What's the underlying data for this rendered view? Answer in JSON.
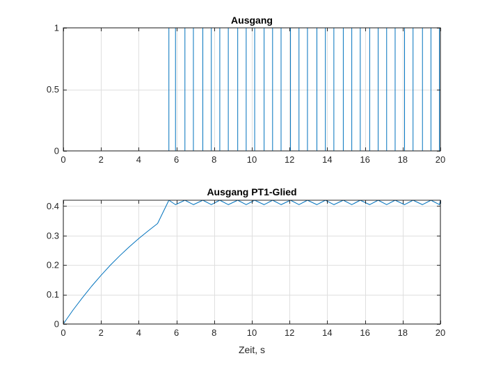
{
  "chart_data": [
    {
      "type": "line",
      "title": "Ausgang",
      "xlabel": "",
      "ylabel": "",
      "xlim": [
        0,
        20
      ],
      "ylim": [
        0,
        1
      ],
      "xticks": [
        0,
        2,
        4,
        6,
        8,
        10,
        12,
        14,
        16,
        18,
        20
      ],
      "xtick_labels": [
        "0",
        "2",
        "4",
        "6",
        "8",
        "10",
        "12",
        "14",
        "16",
        "18",
        "20"
      ],
      "yticks": [
        0,
        0.5,
        1
      ],
      "ytick_labels": [
        "0",
        "0.5",
        "1"
      ],
      "grid": true,
      "color": "#0072BD",
      "series": [
        {
          "step": true,
          "x": [
            0,
            5.6,
            5.95,
            6.45,
            6.9,
            7.4,
            7.85,
            8.3,
            8.75,
            9.25,
            9.7,
            10.15,
            10.65,
            11.1,
            11.55,
            12.05,
            12.5,
            12.95,
            13.45,
            13.9,
            14.35,
            14.85,
            15.3,
            15.75,
            16.25,
            16.7,
            17.15,
            17.6,
            18.1,
            18.55,
            19.05,
            19.5,
            19.95,
            20
          ],
          "y": [
            1,
            0,
            1,
            0,
            1,
            0,
            1,
            0,
            1,
            0,
            1,
            0,
            1,
            0,
            1,
            0,
            1,
            0,
            1,
            0,
            1,
            0,
            1,
            0,
            1,
            0,
            1,
            0,
            1,
            0,
            1,
            0,
            1,
            1
          ]
        }
      ]
    },
    {
      "type": "line",
      "title": "Ausgang PT1-Glied",
      "xlabel": "Zeit, s",
      "ylabel": "",
      "xlim": [
        0,
        20
      ],
      "ylim": [
        0,
        0.42
      ],
      "xticks": [
        0,
        2,
        4,
        6,
        8,
        10,
        12,
        14,
        16,
        18,
        20
      ],
      "xtick_labels": [
        "0",
        "2",
        "4",
        "6",
        "8",
        "10",
        "12",
        "14",
        "16",
        "18",
        "20"
      ],
      "yticks": [
        0,
        0.1,
        0.2,
        0.3,
        0.4
      ],
      "ytick_labels": [
        "0",
        "0.1",
        "0.2",
        "0.3",
        "0.4"
      ],
      "grid": true,
      "color": "#0072BD",
      "series": [
        {
          "step": false,
          "x": [
            0,
            0.5,
            1,
            1.5,
            2,
            2.5,
            3,
            3.5,
            4,
            4.5,
            5,
            5.6,
            5.95,
            6.45,
            6.9,
            7.4,
            7.85,
            8.3,
            8.75,
            9.25,
            9.7,
            10.15,
            10.65,
            11.1,
            11.55,
            12.05,
            12.5,
            12.95,
            13.45,
            13.9,
            14.35,
            14.85,
            15.3,
            15.75,
            16.25,
            16.7,
            17.15,
            17.6,
            18.1,
            18.55,
            19.05,
            19.5,
            19.95,
            20
          ],
          "y": [
            0,
            0.046,
            0.088,
            0.128,
            0.165,
            0.2,
            0.232,
            0.262,
            0.29,
            0.316,
            0.341,
            0.42,
            0.405,
            0.42,
            0.405,
            0.42,
            0.405,
            0.42,
            0.405,
            0.42,
            0.405,
            0.42,
            0.405,
            0.42,
            0.405,
            0.42,
            0.405,
            0.42,
            0.405,
            0.42,
            0.405,
            0.42,
            0.405,
            0.42,
            0.405,
            0.42,
            0.405,
            0.42,
            0.405,
            0.42,
            0.405,
            0.42,
            0.405,
            0.42
          ]
        }
      ]
    }
  ]
}
